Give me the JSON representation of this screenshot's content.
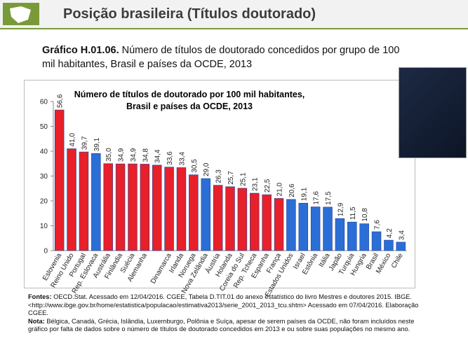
{
  "header": {
    "title": "Posição brasileira (Títulos doutorado)"
  },
  "caption": {
    "label": "Gráfico H.01.06.",
    "text": "Número de títulos de doutorado concedidos por grupo de 100 mil habitantes, Brasil e países da OCDE, 2013"
  },
  "chart_data": {
    "type": "bar",
    "title": "Número de títulos de doutorado por 100 mil habitantes, Brasil e países da OCDE, 2013",
    "categories": [
      "Eslovenia",
      "Reino Unido",
      "Portugal",
      "Rep. Eslovaca",
      "Austrália",
      "Finlândia",
      "Suécia",
      "Alemanha",
      null,
      "Dinamarca",
      "Irlanda",
      "Noruega",
      "Nova Zelândia",
      "Áustria",
      "Holanda",
      "Coreia do Sul",
      "Rep. Tcheca",
      "Espanha",
      "França",
      "Estados Unidos",
      "Israel",
      "Estônia",
      "Itália",
      "Japão",
      "Turquia",
      "Hungria",
      "Brasil",
      "México",
      "Chile"
    ],
    "values": [
      56.6,
      41.0,
      39.7,
      39.1,
      35.0,
      34.9,
      34.9,
      34.8,
      34.4,
      33.6,
      33.4,
      30.5,
      29.0,
      26.3,
      25.7,
      25.1,
      23.1,
      22.5,
      21.0,
      20.6,
      19.1,
      17.6,
      17.5,
      12.9,
      11.5,
      10.8,
      7.6,
      4.2,
      3.4
    ],
    "value_labels": [
      "56,6",
      "41,0",
      "39,7",
      "39,1",
      "35,0",
      "34,9",
      "34,9",
      "34,8",
      "34,4",
      "33,6",
      "33,4",
      "30,5",
      "29,0",
      "26,3",
      "25,7",
      "25,1",
      "23,1",
      "22,5",
      "21,0",
      "20,6",
      "19,1",
      "17,6",
      "17,5",
      "12,9",
      "11,5",
      "10,8",
      "7,6",
      "4,2",
      "3,4"
    ],
    "colors": [
      "#e8202a",
      "#e8202a",
      "#e8202a",
      "#2b6fd6",
      "#e8202a",
      "#e8202a",
      "#e8202a",
      "#e8202a",
      "#e8202a",
      "#e8202a",
      "#e8202a",
      "#e8202a",
      "#2b6fd6",
      "#e8202a",
      "#e8202a",
      "#e8202a",
      "#e8202a",
      "#e8202a",
      "#e8202a",
      "#2b6fd6",
      "#2b6fd6",
      "#2b6fd6",
      "#2b6fd6",
      "#2b6fd6",
      "#2b6fd6",
      "#2b6fd6",
      "#2b6fd6",
      "#2b6fd6",
      "#2b6fd6"
    ],
    "ylim": [
      0,
      60
    ],
    "yticks": [
      0,
      10,
      20,
      30,
      40,
      50,
      60
    ],
    "grid": false
  },
  "notes": {
    "sources_label": "Fontes:",
    "sources": "OECD.Stat. Acessado em 12/04/2016. CGEE, Tabela D.TIT.01 do anexo estatístico do livro Mestres e doutores 2015. IBGE. <http://www.ibge.gov.br/home/estatistica/populacao/estimativa2013/serie_2001_2013_tcu.shtm> Acessado em 07/04/2016. Elaboração CGEE.",
    "note_label": "Nota:",
    "note": "Bélgica, Canadá, Grécia, Islândia, Luxemburgo, Polônia e Suíça, apesar de serem países da OCDE, não foram incluídos neste gráfico por falta de dados sobre o número de títulos de doutorado concedidos em 2013 e ou sobre suas populações no mesmo ano."
  }
}
